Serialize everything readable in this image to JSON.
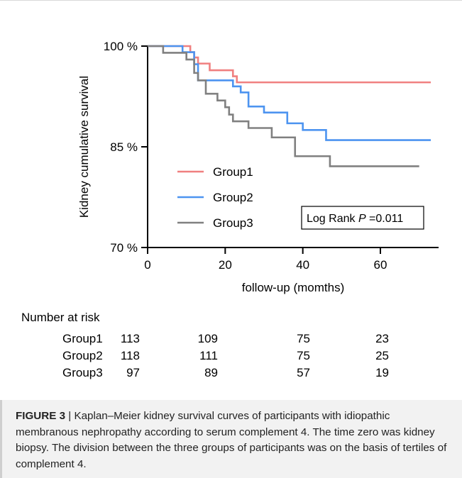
{
  "chart_data": {
    "type": "line",
    "subtype": "kaplan-meier step",
    "xlabel": "follow-up (momths)",
    "ylabel": "Kidney cumulative survival",
    "xlim": [
      0,
      75
    ],
    "ylim": [
      70,
      100
    ],
    "x_ticks": [
      "0",
      "20",
      "40",
      "60"
    ],
    "x_tick_values": [
      0,
      20,
      40,
      60
    ],
    "y_ticks": [
      "70 %",
      "85 %",
      "100 %"
    ],
    "y_tick_values": [
      70,
      85,
      100
    ],
    "grid": false,
    "legend_position": "center-left",
    "annotation": {
      "prefix": "Log Rank ",
      "italic": "P",
      "suffix": " =0.011"
    },
    "series": [
      {
        "name": "Group1",
        "color": "#f08080",
        "x": [
          0,
          11,
          12,
          13,
          14,
          16,
          18,
          22,
          23,
          73
        ],
        "y": [
          100,
          99.1,
          98.3,
          97.4,
          97.4,
          96.4,
          96.4,
          95.5,
          94.6,
          94.6
        ]
      },
      {
        "name": "Group2",
        "color": "#4d94f0",
        "x": [
          0,
          9,
          12,
          13,
          20,
          22,
          24,
          26,
          30,
          36,
          40,
          45,
          46,
          73
        ],
        "y": [
          100,
          99.1,
          97.3,
          94.9,
          94.9,
          94.0,
          93.1,
          91.0,
          90.1,
          88.5,
          87.5,
          87.5,
          86.0,
          86.0
        ]
      },
      {
        "name": "Group3",
        "color": "#808080",
        "x": [
          0,
          4,
          10,
          12,
          13,
          15,
          18,
          20,
          21,
          22,
          24,
          26,
          32,
          38,
          47,
          70
        ],
        "y": [
          100,
          99.0,
          98.0,
          96.0,
          94.9,
          92.9,
          91.9,
          90.9,
          89.8,
          88.8,
          88.8,
          87.8,
          86.4,
          83.6,
          82.1,
          82.1
        ]
      }
    ]
  },
  "risk_table": {
    "title": "Number at risk",
    "rows": [
      {
        "label": "Group1",
        "values": [
          "113",
          "109",
          "75",
          "23"
        ]
      },
      {
        "label": "Group2",
        "values": [
          "118",
          "111",
          "75",
          "25"
        ]
      },
      {
        "label": "Group3",
        "values": [
          "97",
          "89",
          "57",
          "19"
        ]
      }
    ]
  },
  "caption": {
    "figure_label": "FIGURE 3",
    "separator": " | ",
    "text": "Kaplan–Meier kidney survival curves of participants with idiopathic membranous nephropathy according to serum complement 4. The time zero was kidney biopsy. The division between the three groups of participants was on the basis of tertiles of complement 4."
  }
}
